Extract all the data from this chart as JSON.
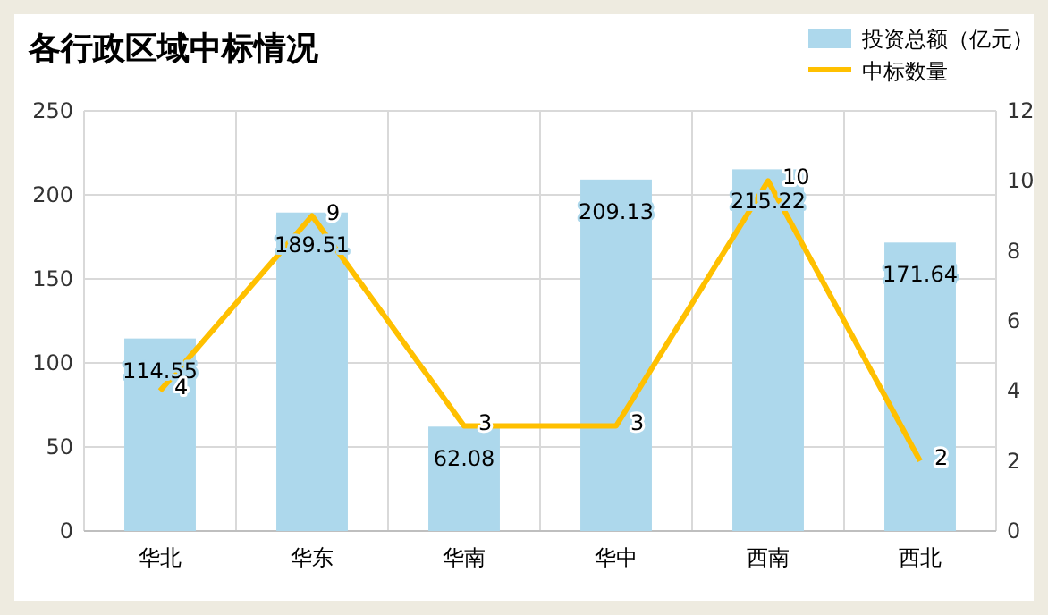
{
  "chart_data": {
    "type": "bar",
    "title": "各行政区域中标情况",
    "categories": [
      "华北",
      "华东",
      "华南",
      "华中",
      "西南",
      "西北"
    ],
    "series": [
      {
        "name": "投资总额（亿元）",
        "color": "#add8ec",
        "values": [
          114.55,
          189.51,
          62.08,
          209.13,
          215.22,
          171.64
        ]
      },
      {
        "name": "中标数量",
        "type": "line",
        "axis": "y2",
        "color": "#ffc000",
        "values": [
          4,
          9,
          3,
          3,
          10,
          2
        ]
      }
    ],
    "ylim": [
      0,
      250
    ],
    "yticks": [
      0,
      50,
      100,
      150,
      200,
      250
    ],
    "y2lim": [
      0,
      12
    ],
    "y2ticks": [
      0,
      2,
      4,
      6,
      8,
      10,
      12
    ],
    "grid": true,
    "legend": "top right",
    "data_labels": true,
    "marker": "none"
  }
}
